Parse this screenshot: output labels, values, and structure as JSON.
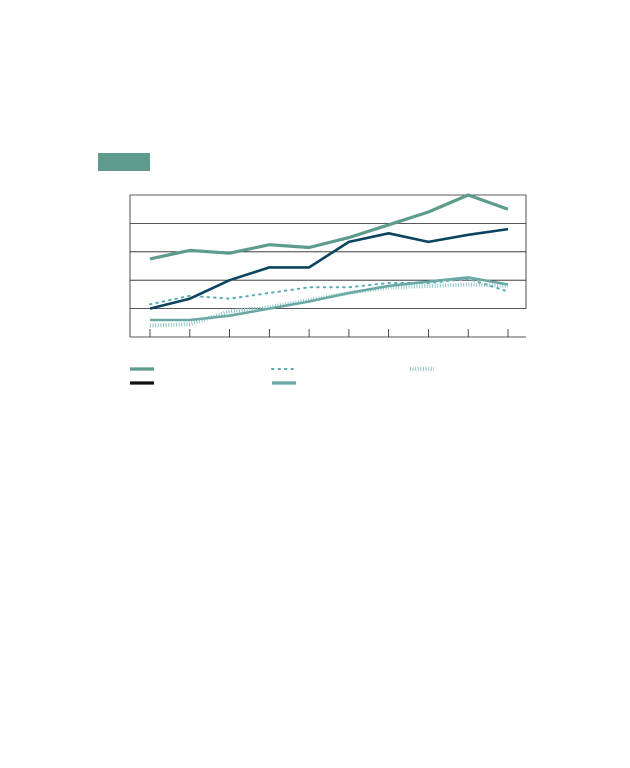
{
  "chart_data": {
    "type": "line",
    "title": "",
    "xlabel": "",
    "ylabel": "",
    "x": [
      1,
      2,
      3,
      4,
      5,
      6,
      7,
      8,
      9,
      10
    ],
    "ylim": [
      0,
      5
    ],
    "grid": true,
    "legend_position": "bottom",
    "series": [
      {
        "name": "",
        "color": "#5d9c8c",
        "style": "solid-thick",
        "values": [
          2.75,
          3.05,
          2.95,
          3.25,
          3.15,
          3.5,
          3.95,
          4.4,
          5.0,
          4.5
        ]
      },
      {
        "name": "",
        "color": "#5aabb5",
        "style": "dotted",
        "values": [
          1.15,
          1.45,
          1.35,
          1.55,
          1.75,
          1.75,
          1.9,
          1.9,
          2.05,
          1.6
        ]
      },
      {
        "name": "",
        "color": "#8cc6c8",
        "style": "hatched",
        "values": [
          0.4,
          0.45,
          0.9,
          1.05,
          1.3,
          1.55,
          1.75,
          1.8,
          1.85,
          1.8
        ]
      },
      {
        "name": "",
        "color": "#0c4460",
        "style": "solid",
        "values": [
          1.0,
          1.35,
          2.0,
          2.45,
          2.45,
          3.35,
          3.65,
          3.35,
          3.6,
          3.8
        ]
      },
      {
        "name": "",
        "color": "#6aa8a6",
        "style": "solid",
        "values": [
          0.6,
          0.6,
          0.75,
          1.0,
          1.25,
          1.55,
          1.8,
          1.95,
          2.1,
          1.85
        ]
      }
    ]
  },
  "colors": {
    "tag": "#5d9c8c",
    "axis": "#222222",
    "grid": "#222222"
  }
}
